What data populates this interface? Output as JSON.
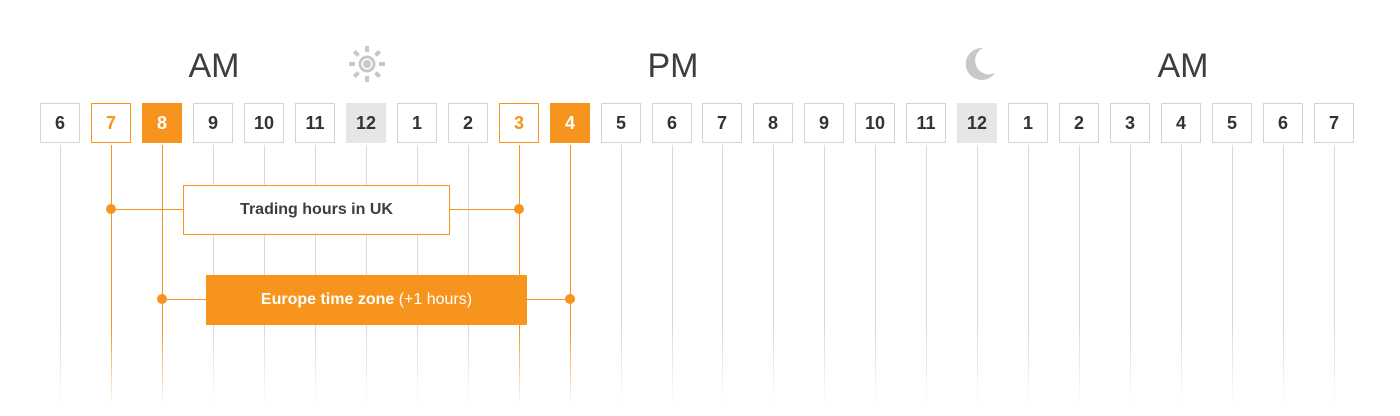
{
  "periods": {
    "am_left": "AM",
    "pm": "PM",
    "am_right": "AM"
  },
  "icons": {
    "day": "sun-icon",
    "night": "moon-icon"
  },
  "hours": [
    {
      "label": "6",
      "style": "plain"
    },
    {
      "label": "7",
      "style": "outline"
    },
    {
      "label": "8",
      "style": "filled"
    },
    {
      "label": "9",
      "style": "plain"
    },
    {
      "label": "10",
      "style": "plain"
    },
    {
      "label": "11",
      "style": "plain"
    },
    {
      "label": "12",
      "style": "noon"
    },
    {
      "label": "1",
      "style": "plain"
    },
    {
      "label": "2",
      "style": "plain"
    },
    {
      "label": "3",
      "style": "outline"
    },
    {
      "label": "4",
      "style": "filled"
    },
    {
      "label": "5",
      "style": "plain"
    },
    {
      "label": "6",
      "style": "plain"
    },
    {
      "label": "7",
      "style": "plain"
    },
    {
      "label": "8",
      "style": "plain"
    },
    {
      "label": "9",
      "style": "plain"
    },
    {
      "label": "10",
      "style": "plain"
    },
    {
      "label": "11",
      "style": "plain"
    },
    {
      "label": "12",
      "style": "noon"
    },
    {
      "label": "1",
      "style": "plain"
    },
    {
      "label": "2",
      "style": "plain"
    },
    {
      "label": "3",
      "style": "plain"
    },
    {
      "label": "4",
      "style": "plain"
    },
    {
      "label": "5",
      "style": "plain"
    },
    {
      "label": "6",
      "style": "plain"
    },
    {
      "label": "7",
      "style": "plain"
    }
  ],
  "ranges": {
    "uk": {
      "label": "Trading hours in UK",
      "start_hour_index": 1,
      "end_hour_index": 9
    },
    "europe": {
      "label_main": "Europe time zone",
      "label_note": "(+1 hours)",
      "start_hour_index": 2,
      "end_hour_index": 10
    }
  },
  "colors": {
    "accent": "#f7941d",
    "text": "#333333",
    "border": "#d4d4d4",
    "noon_fill": "#e6e6e6",
    "icon_gray": "#c8c8c8"
  }
}
